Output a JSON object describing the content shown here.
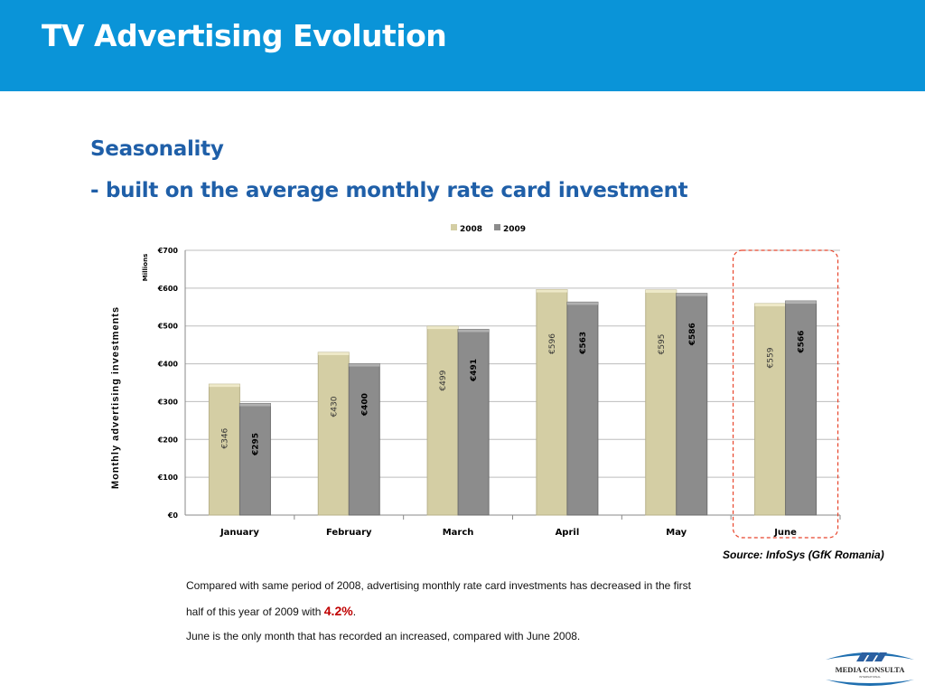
{
  "header": {
    "title": "TV Advertising Evolution"
  },
  "subtitle1": "Seasonality",
  "subtitle2": "- built on the average monthly rate card investment",
  "chart_data": {
    "type": "bar",
    "categories": [
      "January",
      "February",
      "March",
      "April",
      "May",
      "June"
    ],
    "series": [
      {
        "name": "2008",
        "values": [
          346,
          430,
          499,
          596,
          595,
          559
        ],
        "color": "#d4ceA4"
      },
      {
        "name": "2009",
        "values": [
          295,
          400,
          491,
          563,
          586,
          566
        ],
        "color": "#8c8c8c"
      }
    ],
    "ylabel": "Monthly advertising investments",
    "yunit": "Millions",
    "ylim": [
      0,
      700
    ],
    "yticks": [
      "€0",
      "€100",
      "€200",
      "€300",
      "€400",
      "€500",
      "€600",
      "€700"
    ],
    "value_prefix": "€",
    "legend": "top",
    "grid": true,
    "highlight": "June"
  },
  "source": "Source: InfoSys (GfK Romania)",
  "notes": {
    "line1": "Compared with same period of 2008, advertising monthly rate card investments has decreased in the first",
    "line2_pre": "half of this year of 2009 with ",
    "line2_pct": "4.2%",
    "line2_post": ".",
    "line3": "June is the only month that has recorded an increased, compared with June 2008."
  },
  "logo": {
    "text": "MEDIA CONSULTA",
    "sub": "INTERNATIONAL"
  }
}
